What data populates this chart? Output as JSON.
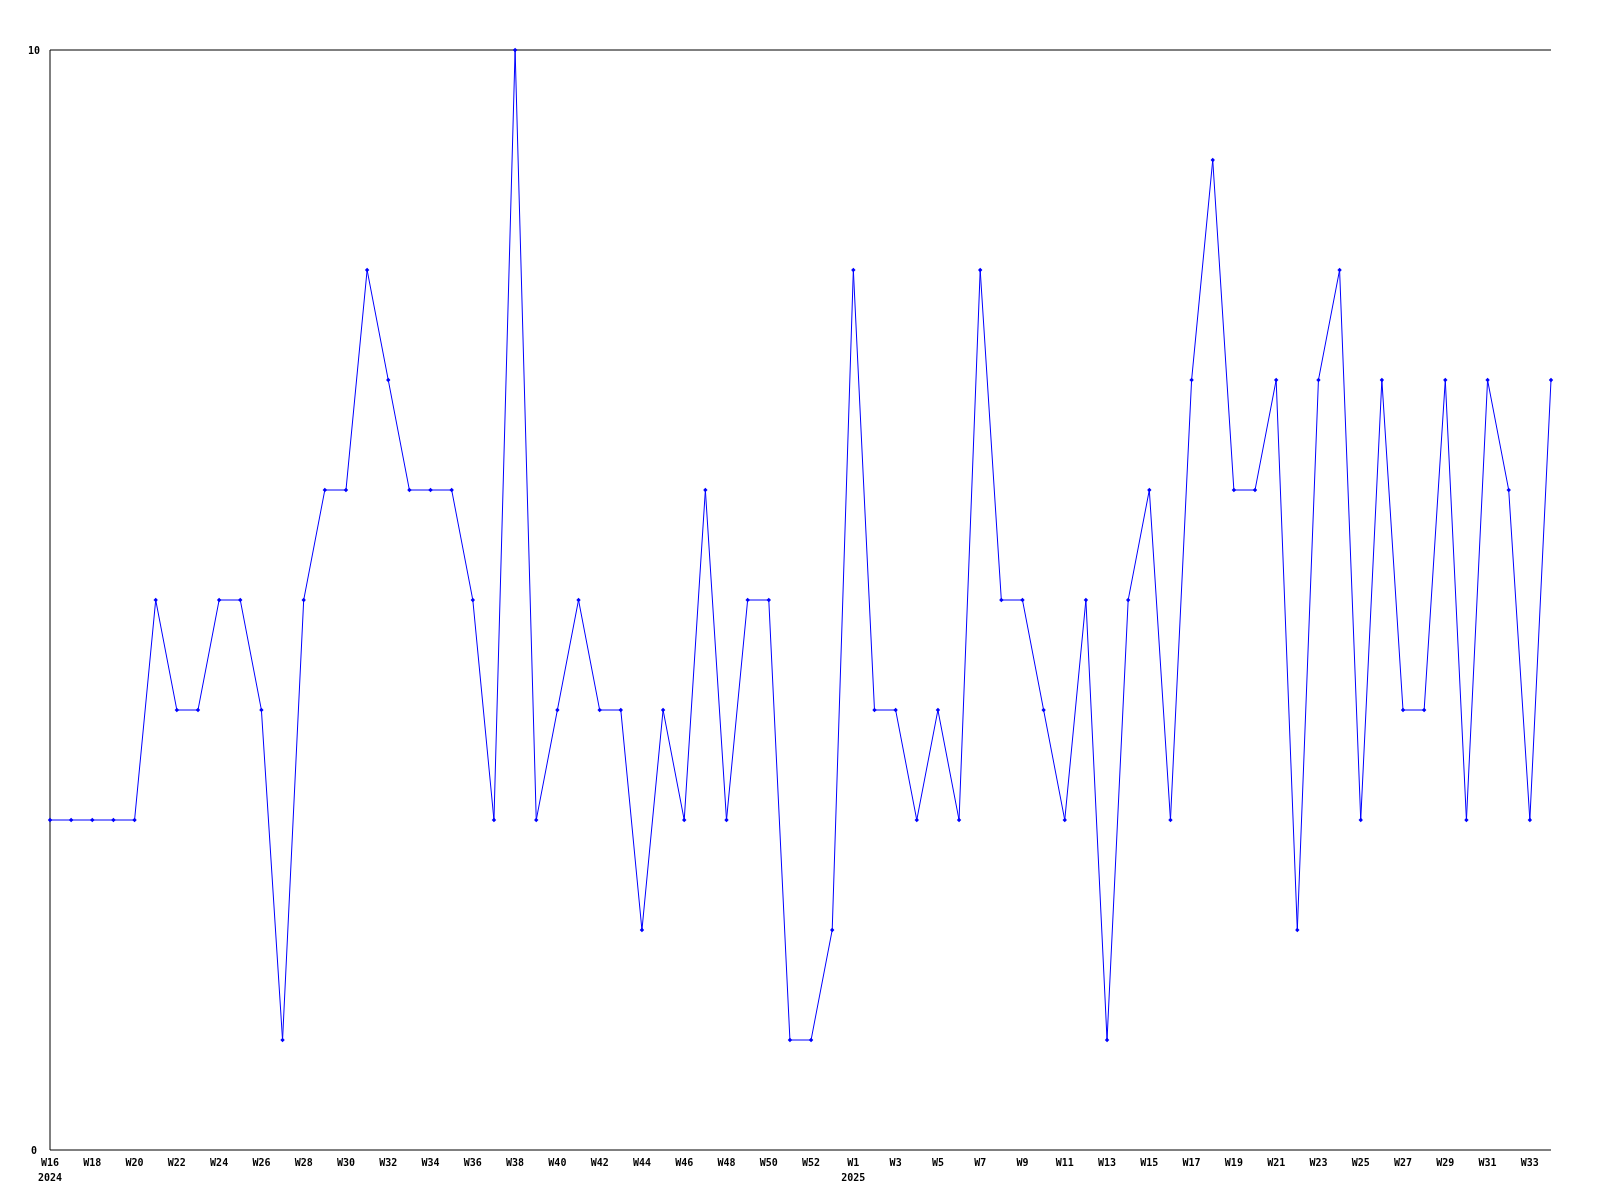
{
  "chart_data": {
    "type": "line",
    "categories": [
      "W16\n2024",
      null,
      "W18",
      null,
      "W20",
      null,
      "W22",
      null,
      "W24",
      null,
      "W26",
      null,
      "W28",
      null,
      "W30",
      null,
      "W32",
      null,
      "W34",
      null,
      "W36",
      null,
      "W38",
      null,
      "W40",
      null,
      "W42",
      null,
      "W44",
      null,
      "W46",
      null,
      "W48",
      null,
      "W50",
      null,
      "W52",
      null,
      "W1\n2025",
      null,
      "W3",
      null,
      "W5",
      null,
      "W7",
      null,
      "W9",
      null,
      "W11",
      null,
      "W13",
      null,
      "W15",
      null,
      "W17",
      null,
      "W19",
      null,
      "W21",
      null,
      "W23",
      null,
      "W25",
      null,
      "W27",
      null,
      "W29",
      null,
      "W31",
      null,
      "W33",
      null
    ],
    "series": [
      {
        "color": "#0000ff",
        "values": [
          3,
          3,
          3,
          3,
          3,
          5,
          4,
          4,
          5,
          5,
          4,
          1,
          5,
          6,
          6,
          8,
          7,
          6,
          6,
          6,
          5,
          3,
          10,
          3,
          4,
          5,
          4,
          4,
          2,
          4,
          3,
          6,
          3,
          5,
          5,
          1,
          1,
          2,
          8,
          4,
          4,
          3,
          4,
          3,
          8,
          5,
          5,
          4,
          3,
          5,
          1,
          5,
          6,
          3,
          7,
          9,
          6,
          6,
          7,
          2,
          7,
          8,
          3,
          7,
          4,
          4,
          7,
          3,
          7,
          6,
          3,
          7
        ]
      }
    ],
    "ylim": [
      0,
      10
    ],
    "yticks": [
      0,
      10
    ],
    "marker": "diamond",
    "line_style": "solid"
  }
}
